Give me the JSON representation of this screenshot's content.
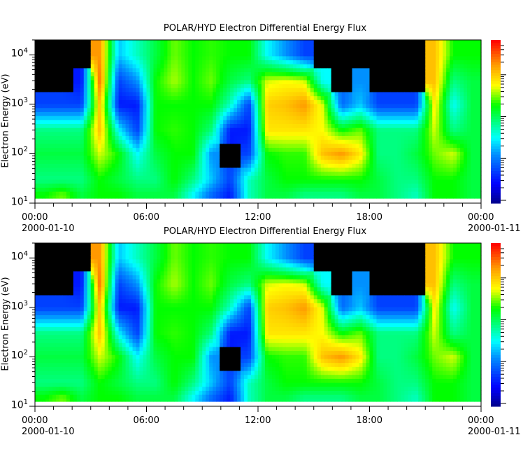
{
  "chart_data": [
    {
      "type": "heatmap",
      "title": "POLAR/HYD  Electron Differential Energy Flux",
      "ylabel": "Electron Energy (eV)",
      "xlabel": "",
      "y_scale": "log",
      "ylim": [
        10,
        20000
      ],
      "y_ticks": [
        {
          "base": "10",
          "exp": "1"
        },
        {
          "base": "10",
          "exp": "2"
        },
        {
          "base": "10",
          "exp": "3"
        },
        {
          "base": "10",
          "exp": "4"
        }
      ],
      "x_ticks": [
        {
          "time": "00:00",
          "date": "2000-01-10"
        },
        {
          "time": "06:00",
          "date": ""
        },
        {
          "time": "12:00",
          "date": ""
        },
        {
          "time": "18:00",
          "date": ""
        },
        {
          "time": "00:00",
          "date": "2000-01-11"
        }
      ],
      "x_hours": [
        0,
        1,
        2,
        3,
        4,
        5,
        6,
        7,
        8,
        9,
        10,
        11,
        12,
        13,
        14,
        15,
        16,
        17,
        18,
        19,
        20,
        21,
        22,
        23
      ],
      "y_energies_eV": [
        15,
        30,
        100,
        300,
        1000,
        3000,
        10000
      ],
      "colorbar": "relative flux level 0 (dark blue) to 1 (red), no data = black",
      "values": [
        [
          0.6,
          0.5,
          0.55,
          0.5,
          0.2,
          null,
          null
        ],
        [
          0.65,
          0.5,
          0.55,
          0.5,
          0.2,
          null,
          null
        ],
        [
          0.55,
          0.5,
          0.55,
          0.5,
          0.2,
          0.15,
          null
        ],
        [
          0.6,
          0.6,
          0.7,
          0.8,
          0.8,
          0.9,
          0.85
        ],
        [
          0.6,
          0.55,
          0.6,
          0.4,
          0.15,
          0.2,
          0.35
        ],
        [
          0.55,
          0.5,
          0.4,
          0.2,
          0.15,
          0.3,
          0.45
        ],
        [
          0.55,
          0.5,
          0.55,
          0.6,
          0.6,
          0.6,
          0.55
        ],
        [
          0.55,
          0.6,
          0.6,
          0.62,
          0.6,
          0.68,
          0.65
        ],
        [
          0.4,
          0.5,
          0.6,
          0.6,
          0.6,
          0.6,
          0.6
        ],
        [
          0.25,
          0.35,
          0.3,
          0.5,
          0.6,
          0.65,
          0.62
        ],
        [
          0.15,
          0.2,
          null,
          0.15,
          0.45,
          0.55,
          0.6
        ],
        [
          0.45,
          0.45,
          0.2,
          0.15,
          0.2,
          0.5,
          0.6
        ],
        [
          0.55,
          0.55,
          0.6,
          0.75,
          0.78,
          0.7,
          0.4
        ],
        [
          0.55,
          0.6,
          0.62,
          0.75,
          0.8,
          0.72,
          0.3
        ],
        [
          0.5,
          0.6,
          0.62,
          0.75,
          0.85,
          0.7,
          0.2
        ],
        [
          0.5,
          0.6,
          0.8,
          0.72,
          0.7,
          0.4,
          null
        ],
        [
          0.5,
          0.6,
          0.85,
          0.6,
          0.25,
          null,
          null
        ],
        [
          0.55,
          0.6,
          0.75,
          0.65,
          0.35,
          0.3,
          null
        ],
        [
          0.55,
          0.55,
          0.5,
          0.5,
          0.2,
          null,
          null
        ],
        [
          0.5,
          0.5,
          0.5,
          0.5,
          0.2,
          null,
          null
        ],
        [
          0.45,
          0.5,
          0.55,
          0.5,
          0.2,
          null,
          null
        ],
        [
          0.6,
          0.6,
          0.65,
          0.7,
          0.75,
          0.8,
          0.8
        ],
        [
          0.6,
          0.6,
          0.7,
          0.5,
          0.4,
          0.5,
          0.6
        ],
        [
          0.55,
          0.55,
          0.55,
          0.55,
          0.55,
          0.55,
          0.6
        ]
      ]
    },
    {
      "type": "heatmap",
      "title": "POLAR/HYD  Electron Differential Energy Flux",
      "ylabel": "Electron Energy (eV)",
      "xlabel": "",
      "y_scale": "log",
      "ylim": [
        10,
        20000
      ],
      "y_ticks": [
        {
          "base": "10",
          "exp": "1"
        },
        {
          "base": "10",
          "exp": "2"
        },
        {
          "base": "10",
          "exp": "3"
        },
        {
          "base": "10",
          "exp": "4"
        }
      ],
      "x_ticks": [
        {
          "time": "00:00",
          "date": "2000-01-10"
        },
        {
          "time": "06:00",
          "date": ""
        },
        {
          "time": "12:00",
          "date": ""
        },
        {
          "time": "18:00",
          "date": ""
        },
        {
          "time": "00:00",
          "date": "2000-01-11"
        }
      ],
      "x_hours": [
        0,
        1,
        2,
        3,
        4,
        5,
        6,
        7,
        8,
        9,
        10,
        11,
        12,
        13,
        14,
        15,
        16,
        17,
        18,
        19,
        20,
        21,
        22,
        23
      ],
      "y_energies_eV": [
        15,
        30,
        100,
        300,
        1000,
        3000,
        10000
      ],
      "colorbar": "relative flux level 0 (dark blue) to 1 (red), no data = black",
      "values": [
        [
          0.6,
          0.5,
          0.55,
          0.5,
          0.2,
          null,
          null
        ],
        [
          0.65,
          0.5,
          0.55,
          0.5,
          0.2,
          null,
          null
        ],
        [
          0.55,
          0.5,
          0.55,
          0.5,
          0.2,
          0.15,
          null
        ],
        [
          0.6,
          0.6,
          0.7,
          0.8,
          0.8,
          0.9,
          0.85
        ],
        [
          0.6,
          0.55,
          0.6,
          0.4,
          0.15,
          0.2,
          0.35
        ],
        [
          0.55,
          0.5,
          0.4,
          0.2,
          0.15,
          0.3,
          0.45
        ],
        [
          0.55,
          0.5,
          0.55,
          0.6,
          0.6,
          0.6,
          0.55
        ],
        [
          0.55,
          0.6,
          0.6,
          0.62,
          0.6,
          0.68,
          0.65
        ],
        [
          0.4,
          0.5,
          0.6,
          0.6,
          0.6,
          0.6,
          0.6
        ],
        [
          0.25,
          0.35,
          0.3,
          0.5,
          0.6,
          0.65,
          0.62
        ],
        [
          0.15,
          0.2,
          null,
          0.15,
          0.45,
          0.55,
          0.6
        ],
        [
          0.45,
          0.45,
          0.2,
          0.15,
          0.2,
          0.5,
          0.6
        ],
        [
          0.55,
          0.55,
          0.6,
          0.75,
          0.78,
          0.7,
          0.4
        ],
        [
          0.55,
          0.6,
          0.62,
          0.75,
          0.8,
          0.72,
          0.3
        ],
        [
          0.5,
          0.6,
          0.62,
          0.75,
          0.85,
          0.7,
          0.2
        ],
        [
          0.5,
          0.6,
          0.8,
          0.72,
          0.7,
          0.4,
          null
        ],
        [
          0.5,
          0.6,
          0.85,
          0.6,
          0.25,
          null,
          null
        ],
        [
          0.55,
          0.6,
          0.75,
          0.65,
          0.35,
          0.3,
          null
        ],
        [
          0.55,
          0.55,
          0.5,
          0.5,
          0.2,
          null,
          null
        ],
        [
          0.5,
          0.5,
          0.5,
          0.5,
          0.2,
          null,
          null
        ],
        [
          0.45,
          0.5,
          0.55,
          0.5,
          0.2,
          null,
          null
        ],
        [
          0.6,
          0.6,
          0.65,
          0.7,
          0.75,
          0.8,
          0.8
        ],
        [
          0.6,
          0.6,
          0.7,
          0.5,
          0.4,
          0.5,
          0.6
        ],
        [
          0.55,
          0.55,
          0.55,
          0.55,
          0.55,
          0.55,
          0.6
        ]
      ]
    }
  ]
}
